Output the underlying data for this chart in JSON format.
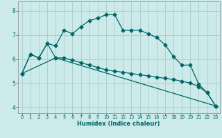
{
  "xlabel": "Humidex (Indice chaleur)",
  "background_color": "#cceaea",
  "grid_color": "#aacccc",
  "line_color": "#006666",
  "xlim": [
    -0.5,
    23.5
  ],
  "ylim": [
    3.75,
    8.4
  ],
  "yticks": [
    4,
    5,
    6,
    7,
    8
  ],
  "xticks": [
    0,
    1,
    2,
    3,
    4,
    5,
    6,
    7,
    8,
    9,
    10,
    11,
    12,
    13,
    14,
    15,
    16,
    17,
    18,
    19,
    20,
    21,
    22,
    23
  ],
  "curve1": [
    5.4,
    6.2,
    6.05,
    6.65,
    6.55,
    7.2,
    7.05,
    7.35,
    7.6,
    7.7,
    7.85,
    7.85,
    7.2,
    7.2,
    7.2,
    7.05,
    6.9,
    6.6,
    6.1,
    5.75,
    5.75,
    4.95,
    4.6,
    4.05
  ],
  "curve2": [
    5.4,
    6.2,
    6.05,
    6.65,
    6.05,
    6.05,
    5.95,
    5.85,
    5.75,
    5.65,
    5.55,
    5.5,
    5.45,
    5.4,
    5.35,
    5.3,
    5.25,
    5.2,
    5.15,
    5.08,
    5.0,
    4.85,
    4.6,
    4.05
  ],
  "curve3_x": [
    0,
    4,
    23
  ],
  "curve3_y": [
    5.4,
    6.05,
    4.05
  ]
}
